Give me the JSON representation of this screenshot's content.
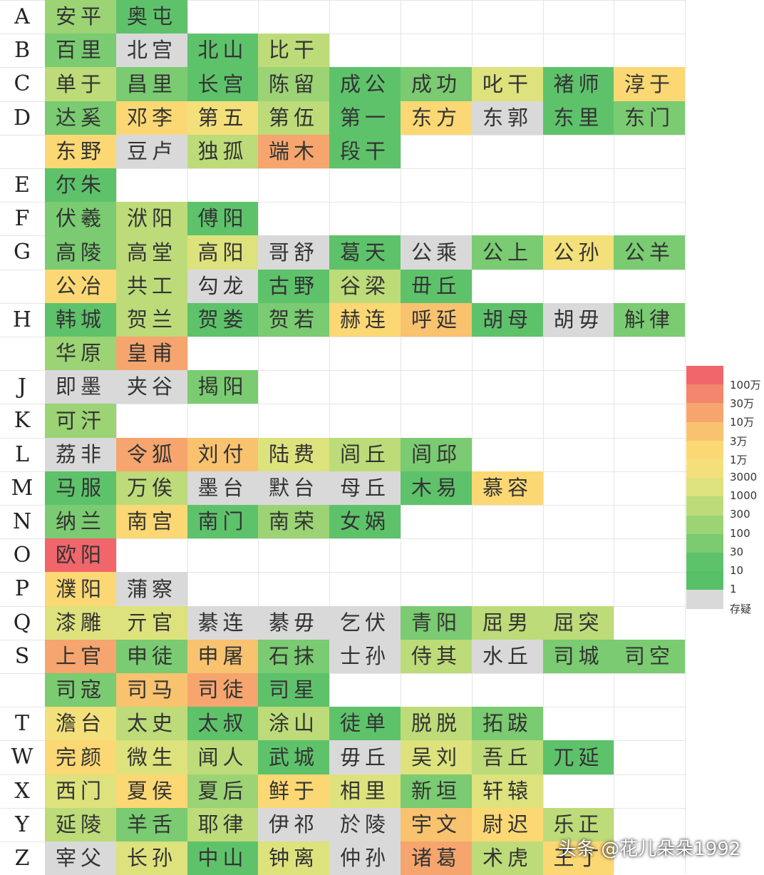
{
  "chart_data": {
    "type": "heatmap",
    "legend": {
      "labels": [
        "100万",
        "30万",
        "10万",
        "3万",
        "1万",
        "3000",
        "1000",
        "300",
        "100",
        "30",
        "10",
        "1",
        "存疑"
      ],
      "colors": [
        "#f0666a",
        "#f3866c",
        "#f5a56d",
        "#f8c26f",
        "#fbd873",
        "#f3e07a",
        "#dde27d",
        "#bddb79",
        "#9bd375",
        "#7acb71",
        "#5ec26b",
        "#58bf69",
        "#d9d9d9"
      ]
    },
    "rows": [
      {
        "letter": "A",
        "cells": [
          {
            "text": "安平",
            "level": "100"
          },
          {
            "text": "奥屯",
            "level": "10"
          }
        ]
      },
      {
        "letter": "B",
        "cells": [
          {
            "text": "百里",
            "level": "30"
          },
          {
            "text": "北宫",
            "level": "存疑"
          },
          {
            "text": "北山",
            "level": "10"
          },
          {
            "text": "比干",
            "level": "300"
          }
        ]
      },
      {
        "letter": "C",
        "cells": [
          {
            "text": "单于",
            "level": "300"
          },
          {
            "text": "昌里",
            "level": "30"
          },
          {
            "text": "长宫",
            "level": "10"
          },
          {
            "text": "陈留",
            "level": "100"
          },
          {
            "text": "成公",
            "level": "10"
          },
          {
            "text": "成功",
            "level": "30"
          },
          {
            "text": "叱干",
            "level": "1000"
          },
          {
            "text": "褚师",
            "level": "10"
          },
          {
            "text": "淳于",
            "level": "1万"
          }
        ]
      },
      {
        "letter": "D",
        "cells": [
          {
            "text": "达奚",
            "level": "30"
          },
          {
            "text": "邓李",
            "level": "1万"
          },
          {
            "text": "第五",
            "level": "3000"
          },
          {
            "text": "第伍",
            "level": "300"
          },
          {
            "text": "第一",
            "level": "10"
          },
          {
            "text": "东方",
            "level": "1万"
          },
          {
            "text": "东郭",
            "level": "存疑"
          },
          {
            "text": "东里",
            "level": "10"
          },
          {
            "text": "东门",
            "level": "30"
          }
        ]
      },
      {
        "letter": "",
        "cells": [
          {
            "text": "东野",
            "level": "1万"
          },
          {
            "text": "豆卢",
            "level": "存疑"
          },
          {
            "text": "独孤",
            "level": "300"
          },
          {
            "text": "端木",
            "level": "10万"
          },
          {
            "text": "段干",
            "level": "10"
          }
        ]
      },
      {
        "letter": "E",
        "cells": [
          {
            "text": "尔朱",
            "level": "10"
          }
        ]
      },
      {
        "letter": "F",
        "cells": [
          {
            "text": "伏羲",
            "level": "30"
          },
          {
            "text": "洑阳",
            "level": "300"
          },
          {
            "text": "傅阳",
            "level": "10"
          }
        ]
      },
      {
        "letter": "G",
        "cells": [
          {
            "text": "高陵",
            "level": "30"
          },
          {
            "text": "高堂",
            "level": "300"
          },
          {
            "text": "高阳",
            "level": "1000"
          },
          {
            "text": "哥舒",
            "level": "存疑"
          },
          {
            "text": "葛天",
            "level": "10"
          },
          {
            "text": "公乘",
            "level": "存疑"
          },
          {
            "text": "公上",
            "level": "30"
          },
          {
            "text": "公孙",
            "level": "3000"
          },
          {
            "text": "公羊",
            "level": "30"
          }
        ]
      },
      {
        "letter": "",
        "cells": [
          {
            "text": "公冶",
            "level": "1万"
          },
          {
            "text": "共工",
            "level": "300"
          },
          {
            "text": "勾龙",
            "level": "存疑"
          },
          {
            "text": "古野",
            "level": "10"
          },
          {
            "text": "谷梁",
            "level": "300"
          },
          {
            "text": "毌丘",
            "level": "10"
          }
        ]
      },
      {
        "letter": "H",
        "cells": [
          {
            "text": "韩城",
            "level": "10"
          },
          {
            "text": "贺兰",
            "level": "300"
          },
          {
            "text": "贺娄",
            "level": "10"
          },
          {
            "text": "贺若",
            "level": "30"
          },
          {
            "text": "赫连",
            "level": "1万"
          },
          {
            "text": "呼延",
            "level": "3万"
          },
          {
            "text": "胡母",
            "level": "10"
          },
          {
            "text": "胡毋",
            "level": "存疑"
          },
          {
            "text": "斛律",
            "level": "30"
          }
        ]
      },
      {
        "letter": "",
        "cells": [
          {
            "text": "华原",
            "level": "100"
          },
          {
            "text": "皇甫",
            "level": "10万"
          }
        ]
      },
      {
        "letter": "J",
        "cells": [
          {
            "text": "即墨",
            "level": "存疑"
          },
          {
            "text": "夹谷",
            "level": "存疑"
          },
          {
            "text": "揭阳",
            "level": "30"
          }
        ]
      },
      {
        "letter": "K",
        "cells": [
          {
            "text": "可汗",
            "level": "100"
          }
        ]
      },
      {
        "letter": "L",
        "cells": [
          {
            "text": "荔非",
            "level": "存疑"
          },
          {
            "text": "令狐",
            "level": "10万"
          },
          {
            "text": "刘付",
            "level": "3万"
          },
          {
            "text": "陆费",
            "level": "1000"
          },
          {
            "text": "闾丘",
            "level": "300"
          },
          {
            "text": "闾邱",
            "level": "30"
          }
        ]
      },
      {
        "letter": "M",
        "cells": [
          {
            "text": "马服",
            "level": "10"
          },
          {
            "text": "万俟",
            "level": "300"
          },
          {
            "text": "墨台",
            "level": "存疑"
          },
          {
            "text": "默台",
            "level": "存疑"
          },
          {
            "text": "母丘",
            "level": "存疑"
          },
          {
            "text": "木易",
            "level": "10"
          },
          {
            "text": "慕容",
            "level": "1万"
          }
        ]
      },
      {
        "letter": "N",
        "cells": [
          {
            "text": "纳兰",
            "level": "30"
          },
          {
            "text": "南宫",
            "level": "1万"
          },
          {
            "text": "南门",
            "level": "10"
          },
          {
            "text": "南荣",
            "level": "100"
          },
          {
            "text": "女娲",
            "level": "10"
          }
        ]
      },
      {
        "letter": "O",
        "cells": [
          {
            "text": "欧阳",
            "level": "100万"
          }
        ]
      },
      {
        "letter": "P",
        "cells": [
          {
            "text": "濮阳",
            "level": "1万"
          },
          {
            "text": "蒲察",
            "level": "存疑"
          }
        ]
      },
      {
        "letter": "Q",
        "cells": [
          {
            "text": "漆雕",
            "level": "1000"
          },
          {
            "text": "亓官",
            "level": "1000"
          },
          {
            "text": "綦连",
            "level": "存疑"
          },
          {
            "text": "綦毋",
            "level": "存疑"
          },
          {
            "text": "乞伏",
            "level": "存疑"
          },
          {
            "text": "青阳",
            "level": "30"
          },
          {
            "text": "屈男",
            "level": "300"
          },
          {
            "text": "屈突",
            "level": "300"
          }
        ]
      },
      {
        "letter": "S",
        "cells": [
          {
            "text": "上官",
            "level": "10万"
          },
          {
            "text": "申徒",
            "level": "30"
          },
          {
            "text": "申屠",
            "level": "3万"
          },
          {
            "text": "石抹",
            "level": "30"
          },
          {
            "text": "士孙",
            "level": "存疑"
          },
          {
            "text": "侍其",
            "level": "300"
          },
          {
            "text": "水丘",
            "level": "存疑"
          },
          {
            "text": "司城",
            "level": "30"
          },
          {
            "text": "司空",
            "level": "30"
          }
        ]
      },
      {
        "letter": "",
        "cells": [
          {
            "text": "司寇",
            "level": "30"
          },
          {
            "text": "司马",
            "level": "3万"
          },
          {
            "text": "司徒",
            "level": "10万"
          },
          {
            "text": "司星",
            "level": "10"
          }
        ]
      },
      {
        "letter": "T",
        "cells": [
          {
            "text": "澹台",
            "level": "3000"
          },
          {
            "text": "太史",
            "level": "300"
          },
          {
            "text": "太叔",
            "level": "10"
          },
          {
            "text": "涂山",
            "level": "300"
          },
          {
            "text": "徒单",
            "level": "10"
          },
          {
            "text": "脱脱",
            "level": "300"
          },
          {
            "text": "拓跋",
            "level": "30"
          }
        ]
      },
      {
        "letter": "W",
        "cells": [
          {
            "text": "完颜",
            "level": "1万"
          },
          {
            "text": "微生",
            "level": "1000"
          },
          {
            "text": "闻人",
            "level": "300"
          },
          {
            "text": "武城",
            "level": "10"
          },
          {
            "text": "毋丘",
            "level": "存疑"
          },
          {
            "text": "吴刘",
            "level": "1000"
          },
          {
            "text": "吾丘",
            "level": "300"
          },
          {
            "text": "兀延",
            "level": "10"
          }
        ]
      },
      {
        "letter": "X",
        "cells": [
          {
            "text": "西门",
            "level": "1000"
          },
          {
            "text": "夏侯",
            "level": "1万"
          },
          {
            "text": "夏后",
            "level": "100"
          },
          {
            "text": "鲜于",
            "level": "1万"
          },
          {
            "text": "相里",
            "level": "1000"
          },
          {
            "text": "新垣",
            "level": "30"
          },
          {
            "text": "轩辕",
            "level": "1000"
          }
        ]
      },
      {
        "letter": "Y",
        "cells": [
          {
            "text": "延陵",
            "level": "300"
          },
          {
            "text": "羊舌",
            "level": "30"
          },
          {
            "text": "耶律",
            "level": "300"
          },
          {
            "text": "伊祁",
            "level": "存疑"
          },
          {
            "text": "於陵",
            "level": "存疑"
          },
          {
            "text": "宇文",
            "level": "3万"
          },
          {
            "text": "尉迟",
            "level": "1万"
          },
          {
            "text": "乐正",
            "level": "300"
          }
        ]
      },
      {
        "letter": "Z",
        "cells": [
          {
            "text": "宰父",
            "level": "存疑"
          },
          {
            "text": "长孙",
            "level": "1000"
          },
          {
            "text": "中山",
            "level": "10"
          },
          {
            "text": "钟离",
            "level": "1000"
          },
          {
            "text": "仲孙",
            "level": "存疑"
          },
          {
            "text": "诸葛",
            "level": "10万"
          },
          {
            "text": "术虎",
            "level": "300"
          },
          {
            "text": "王丁",
            "level": "1万"
          }
        ]
      }
    ]
  },
  "watermark": "头条 @花儿朵朵1992"
}
